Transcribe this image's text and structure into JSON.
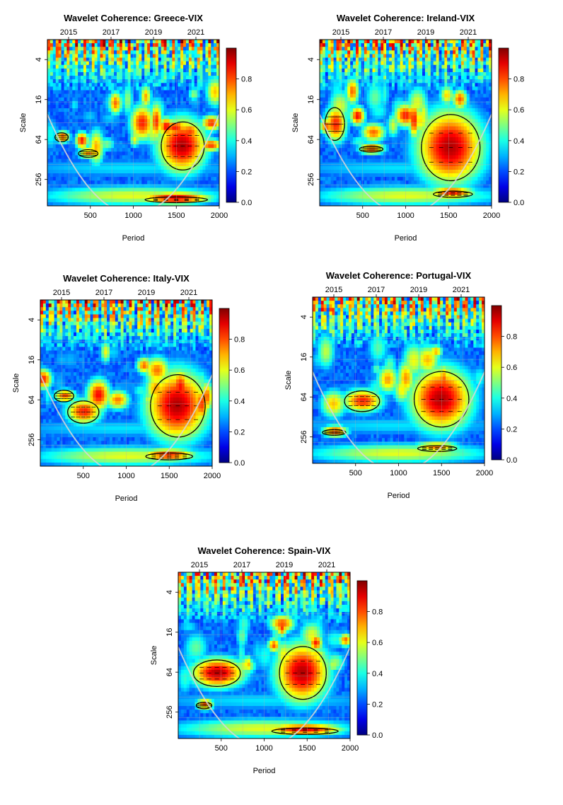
{
  "chart_data": [
    {
      "type": "heatmap",
      "title": "Wavelet Coherence: Greece-VIX",
      "xlabel": "Period",
      "ylabel": "Scale",
      "x_ticks": [
        500,
        1000,
        1500,
        2000
      ],
      "top_ticks": [
        "2015",
        "2017",
        "2019",
        "2021"
      ],
      "y_ticks": [
        "4",
        "16",
        "64",
        "256"
      ],
      "xlim": [
        0,
        2000
      ],
      "colorbar": {
        "ticks": [
          "0.0",
          "0.2",
          "0.4",
          "0.6",
          "0.8"
        ],
        "range": [
          0,
          1
        ]
      },
      "high_coherence_regions": [
        {
          "period": [
            1300,
            1850
          ],
          "scale": [
            32,
            200
          ],
          "level": 0.95
        },
        {
          "period": [
            1100,
            1900
          ],
          "scale": [
            480,
            560
          ],
          "level": 0.9
        },
        {
          "period": [
            80,
            250
          ],
          "scale": [
            50,
            70
          ],
          "level": 0.8
        },
        {
          "period": [
            350,
            600
          ],
          "scale": [
            90,
            120
          ],
          "level": 0.75
        }
      ]
    },
    {
      "type": "heatmap",
      "title": "Wavelet Coherence: Ireland-VIX",
      "xlabel": "Period",
      "ylabel": "Scale",
      "x_ticks": [
        500,
        1000,
        1500,
        2000
      ],
      "top_ticks": [
        "2015",
        "2017",
        "2019",
        "2021"
      ],
      "y_ticks": [
        "4",
        "16",
        "64",
        "256"
      ],
      "xlim": [
        0,
        2000
      ],
      "colorbar": {
        "ticks": [
          "0.0",
          "0.2",
          "0.4",
          "0.6",
          "0.8"
        ],
        "range": [
          0,
          1
        ]
      },
      "high_coherence_regions": [
        {
          "period": [
            1150,
            1900
          ],
          "scale": [
            24,
            300
          ],
          "level": 0.95
        },
        {
          "period": [
            50,
            300
          ],
          "scale": [
            20,
            70
          ],
          "level": 0.85
        },
        {
          "period": [
            1300,
            1800
          ],
          "scale": [
            380,
            480
          ],
          "level": 0.85
        },
        {
          "period": [
            450,
            750
          ],
          "scale": [
            80,
            100
          ],
          "level": 0.8
        }
      ]
    },
    {
      "type": "heatmap",
      "title": "Wavelet Coherence: Italy-VIX",
      "xlabel": "Period",
      "ylabel": "Scale",
      "x_ticks": [
        500,
        1000,
        1500,
        2000
      ],
      "top_ticks": [
        "2015",
        "2017",
        "2019",
        "2021"
      ],
      "y_ticks": [
        "4",
        "16",
        "64",
        "256"
      ],
      "xlim": [
        0,
        2000
      ],
      "colorbar": {
        "ticks": [
          "0.0",
          "0.2",
          "0.4",
          "0.6",
          "0.8"
        ],
        "range": [
          0,
          1
        ]
      },
      "high_coherence_regions": [
        {
          "period": [
            1250,
            1950
          ],
          "scale": [
            24,
            260
          ],
          "level": 0.95
        },
        {
          "period": [
            300,
            700
          ],
          "scale": [
            64,
            150
          ],
          "level": 0.85
        },
        {
          "period": [
            150,
            400
          ],
          "scale": [
            45,
            70
          ],
          "level": 0.8
        },
        {
          "period": [
            1200,
            1800
          ],
          "scale": [
            400,
            520
          ],
          "level": 0.85
        }
      ]
    },
    {
      "type": "heatmap",
      "title": "Wavelet Coherence: Portugal-VIX",
      "xlabel": "Period",
      "ylabel": "Scale",
      "x_ticks": [
        500,
        1000,
        1500,
        2000
      ],
      "top_ticks": [
        "2015",
        "2017",
        "2019",
        "2021"
      ],
      "y_ticks": [
        "4",
        "16",
        "64",
        "256"
      ],
      "xlim": [
        0,
        2000
      ],
      "colorbar": {
        "ticks": [
          "0.0",
          "0.2",
          "0.4",
          "0.6",
          "0.8"
        ],
        "range": [
          0,
          1
        ]
      },
      "high_coherence_regions": [
        {
          "period": [
            1150,
            1850
          ],
          "scale": [
            24,
            200
          ],
          "level": 0.95
        },
        {
          "period": [
            350,
            800
          ],
          "scale": [
            50,
            110
          ],
          "level": 0.85
        },
        {
          "period": [
            100,
            400
          ],
          "scale": [
            200,
            240
          ],
          "level": 0.8
        },
        {
          "period": [
            1200,
            1700
          ],
          "scale": [
            350,
            420
          ],
          "level": 0.75
        }
      ]
    },
    {
      "type": "heatmap",
      "title": "Wavelet Coherence: Spain-VIX",
      "xlabel": "Period",
      "ylabel": "Scale",
      "x_ticks": [
        500,
        1000,
        1500,
        2000
      ],
      "top_ticks": [
        "2015",
        "2017",
        "2019",
        "2021"
      ],
      "y_ticks": [
        "4",
        "16",
        "64",
        "256"
      ],
      "xlim": [
        0,
        2000
      ],
      "colorbar": {
        "ticks": [
          "0.0",
          "0.2",
          "0.4",
          "0.6",
          "0.8"
        ],
        "range": [
          0,
          1
        ]
      },
      "high_coherence_regions": [
        {
          "period": [
            150,
            750
          ],
          "scale": [
            40,
            110
          ],
          "level": 0.95
        },
        {
          "period": [
            1150,
            1750
          ],
          "scale": [
            24,
            180
          ],
          "level": 0.95
        },
        {
          "period": [
            1050,
            1900
          ],
          "scale": [
            440,
            560
          ],
          "level": 0.9
        },
        {
          "period": [
            200,
            400
          ],
          "scale": [
            180,
            230
          ],
          "level": 0.8
        }
      ]
    }
  ]
}
